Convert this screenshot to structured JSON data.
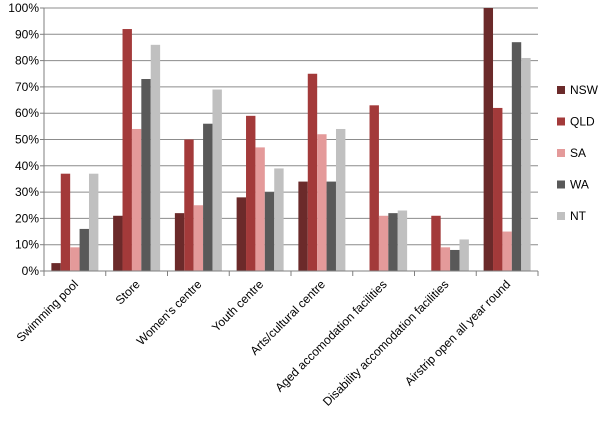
{
  "chart_data": {
    "type": "bar",
    "title": "",
    "xlabel": "",
    "ylabel": "",
    "ylim": [
      0,
      100
    ],
    "y_ticks": [
      "0%",
      "10%",
      "20%",
      "30%",
      "40%",
      "50%",
      "60%",
      "70%",
      "80%",
      "90%",
      "100%"
    ],
    "grid": true,
    "legend_position": "right",
    "categories": [
      "Swimming pool",
      "Store",
      "Women's centre",
      "Youth centre",
      "Arts/cultural centre",
      "Aged accomodation facilities",
      "Disability accomodation facilities",
      "Airstrip open all year round"
    ],
    "series": [
      {
        "name": "NSW",
        "color": "#6b2a2a",
        "values": [
          3,
          21,
          22,
          28,
          34,
          0,
          0,
          100
        ]
      },
      {
        "name": "QLD",
        "color": "#a33a3a",
        "values": [
          37,
          92,
          50,
          59,
          75,
          63,
          21,
          62
        ]
      },
      {
        "name": "SA",
        "color": "#e49a9a",
        "values": [
          9,
          54,
          25,
          47,
          52,
          21,
          9,
          15
        ]
      },
      {
        "name": "WA",
        "color": "#595959",
        "values": [
          16,
          73,
          56,
          30,
          34,
          22,
          8,
          87
        ]
      },
      {
        "name": "NT",
        "color": "#c0c0c0",
        "values": [
          37,
          86,
          69,
          39,
          54,
          23,
          12,
          81
        ]
      }
    ]
  }
}
